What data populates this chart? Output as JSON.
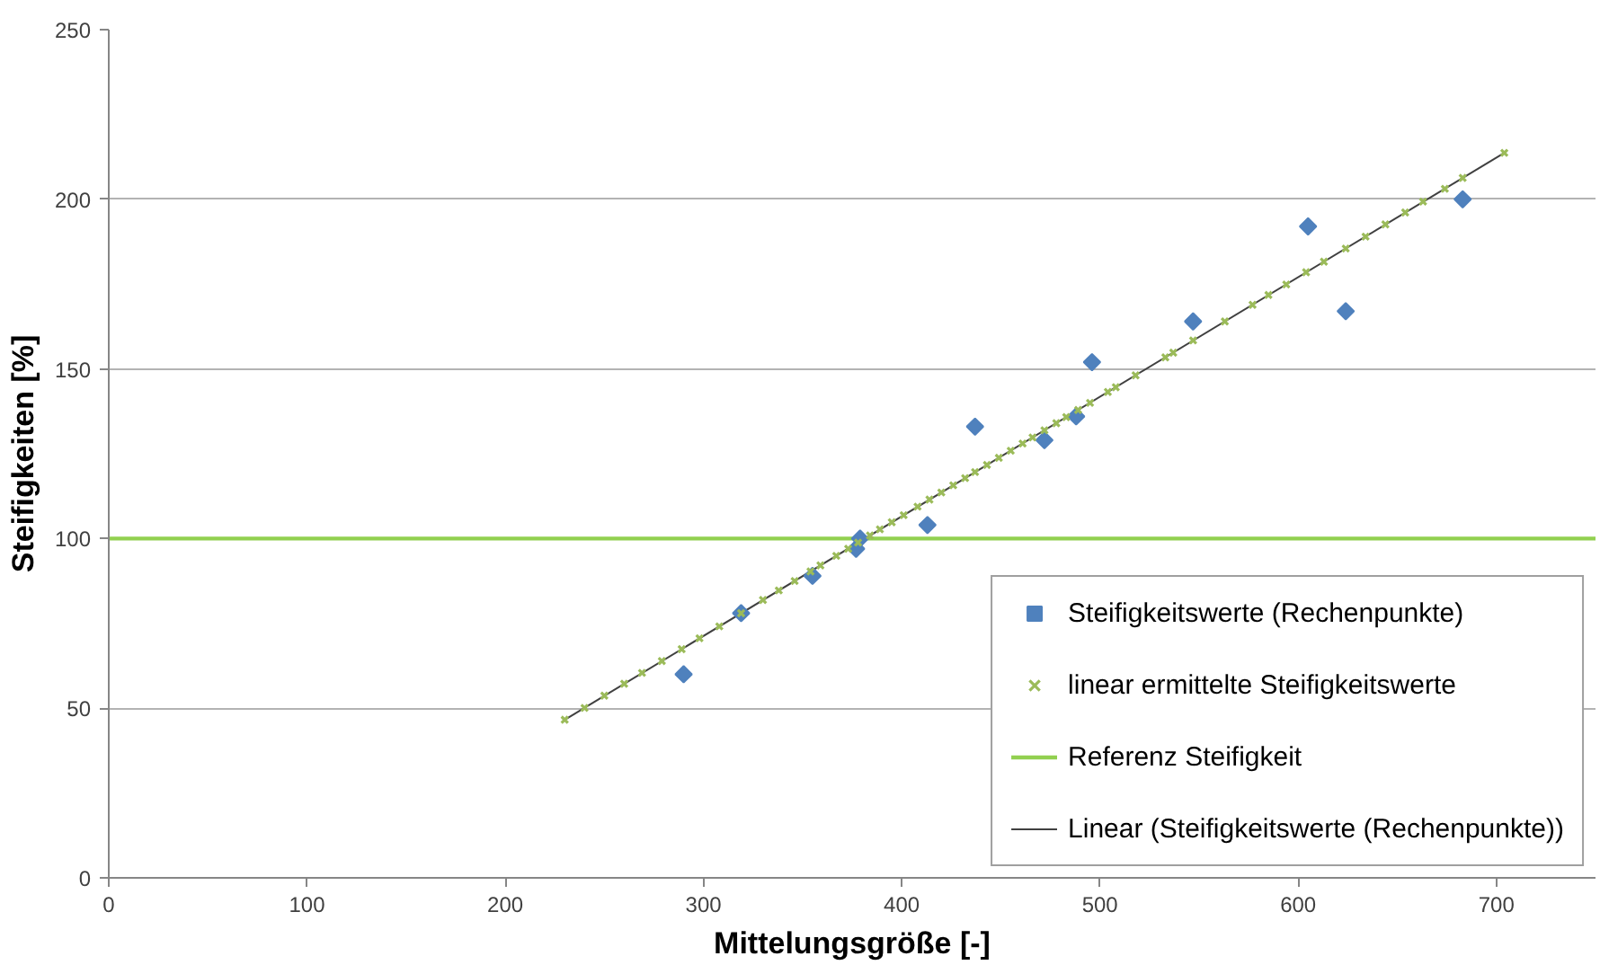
{
  "chart_data": {
    "type": "scatter",
    "xlabel": "Mittelungsgröße [-]",
    "ylabel": "Steifigkeiten [%]",
    "xlim": [
      0,
      750
    ],
    "ylim": [
      0,
      250
    ],
    "xticks": [
      0,
      100,
      200,
      300,
      400,
      500,
      600,
      700
    ],
    "yticks": [
      0,
      50,
      100,
      150,
      200,
      250
    ],
    "grid": "y",
    "legend": "bottom right",
    "series": [
      {
        "name": "Steifigkeitswerte (Rechenpunkte)",
        "color": "#4f81bd",
        "marker": "diamond",
        "x": [
          290,
          319,
          355,
          377,
          379,
          413,
          437,
          472,
          488,
          496,
          547,
          605,
          624,
          683
        ],
        "values": [
          60,
          78,
          89,
          97,
          100,
          104,
          133,
          129,
          136,
          152,
          164,
          192,
          167,
          200
        ]
      },
      {
        "name": "linear ermittelte Steifigkeitswerte",
        "color": "#9bbb59",
        "marker": "cross",
        "x": [
          230,
          240,
          250,
          260,
          269,
          279,
          289,
          298,
          308,
          319,
          330,
          338,
          346,
          354,
          359,
          367,
          373,
          378,
          384,
          389,
          395,
          401,
          408,
          414,
          420,
          426,
          432,
          437,
          443,
          449,
          455,
          461,
          466,
          472,
          478,
          483,
          489,
          495,
          504,
          508,
          518,
          533,
          537,
          547,
          563,
          577,
          585,
          594,
          604,
          613,
          624,
          634,
          644,
          654,
          663,
          674,
          683,
          704
        ],
        "values": [
          46.6,
          50.1,
          53.7,
          57.2,
          60.4,
          63.9,
          67.4,
          70.6,
          74.1,
          78.0,
          81.9,
          84.7,
          87.5,
          90.3,
          92.1,
          94.9,
          97.0,
          98.8,
          100.9,
          102.7,
          104.8,
          106.9,
          109.4,
          111.5,
          113.6,
          115.7,
          117.8,
          119.6,
          121.7,
          123.8,
          125.9,
          128.0,
          129.8,
          131.9,
          134.0,
          135.8,
          137.9,
          140.0,
          143.2,
          144.6,
          148.1,
          153.4,
          154.8,
          158.4,
          164.0,
          168.9,
          171.8,
          174.9,
          178.5,
          181.6,
          185.5,
          189.0,
          192.6,
          196.1,
          199.3,
          203.1,
          206.3,
          213.7
        ]
      },
      {
        "name": "Linear (Steifigkeitswerte (Rechenpunkte))",
        "type": "line",
        "color": "#404040",
        "marker": "none",
        "x": [
          230,
          704
        ],
        "values": [
          46.6,
          213.7
        ]
      }
    ],
    "ref_lines": [
      {
        "axis": "y",
        "value": 100,
        "label": "Referenz Steifigkeit",
        "color": "#92d050"
      }
    ]
  }
}
